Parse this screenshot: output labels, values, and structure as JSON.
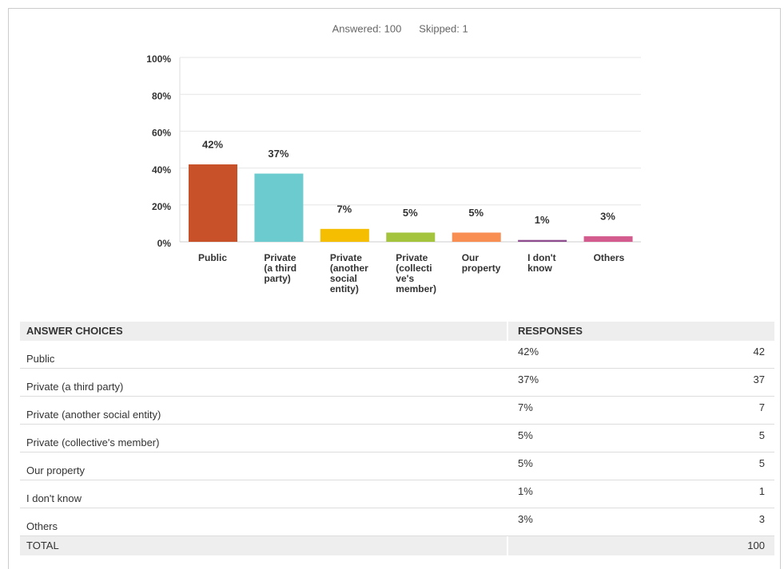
{
  "summary": [
    "Answered: 100",
    "Skipped: 1"
  ],
  "chart_data": {
    "type": "bar",
    "categories": [
      [
        "Public"
      ],
      [
        "Private",
        "(a third",
        "party)"
      ],
      [
        "Private",
        "(another",
        "social",
        "entity)"
      ],
      [
        "Private",
        "(collecti",
        "ve's",
        "member)"
      ],
      [
        "Our",
        "property"
      ],
      [
        "I don't",
        "know"
      ],
      [
        "Others"
      ]
    ],
    "values": [
      42,
      37,
      7,
      5,
      5,
      1,
      3
    ],
    "value_labels": [
      "42%",
      "37%",
      "7%",
      "5%",
      "5%",
      "1%",
      "3%"
    ],
    "colors": [
      "#c9512a",
      "#6ccbcf",
      "#f5be00",
      "#a3c43c",
      "#f88e52",
      "#8e4d8f",
      "#d35b8e"
    ],
    "ylim": [
      0,
      100
    ],
    "yticks": [
      {
        "value": 0,
        "label": "0%"
      },
      {
        "value": 20,
        "label": "20%"
      },
      {
        "value": 40,
        "label": "40%"
      },
      {
        "value": 60,
        "label": "60%"
      },
      {
        "value": 80,
        "label": "80%"
      },
      {
        "value": 100,
        "label": "100%"
      }
    ],
    "grid": true
  },
  "table": {
    "header": [
      "ANSWER CHOICES",
      "RESPONSES"
    ],
    "rows": [
      [
        "Public",
        "42%",
        "42"
      ],
      [
        "Private (a third party)",
        "37%",
        "37"
      ],
      [
        "Private (another social entity)",
        "7%",
        "7"
      ],
      [
        "Private (collective's member)",
        "5%",
        "5"
      ],
      [
        "Our property",
        "5%",
        "5"
      ],
      [
        "I don't know",
        "1%",
        "1"
      ],
      [
        "Others",
        "3%",
        "3"
      ]
    ],
    "total": [
      "TOTAL",
      "100"
    ]
  }
}
